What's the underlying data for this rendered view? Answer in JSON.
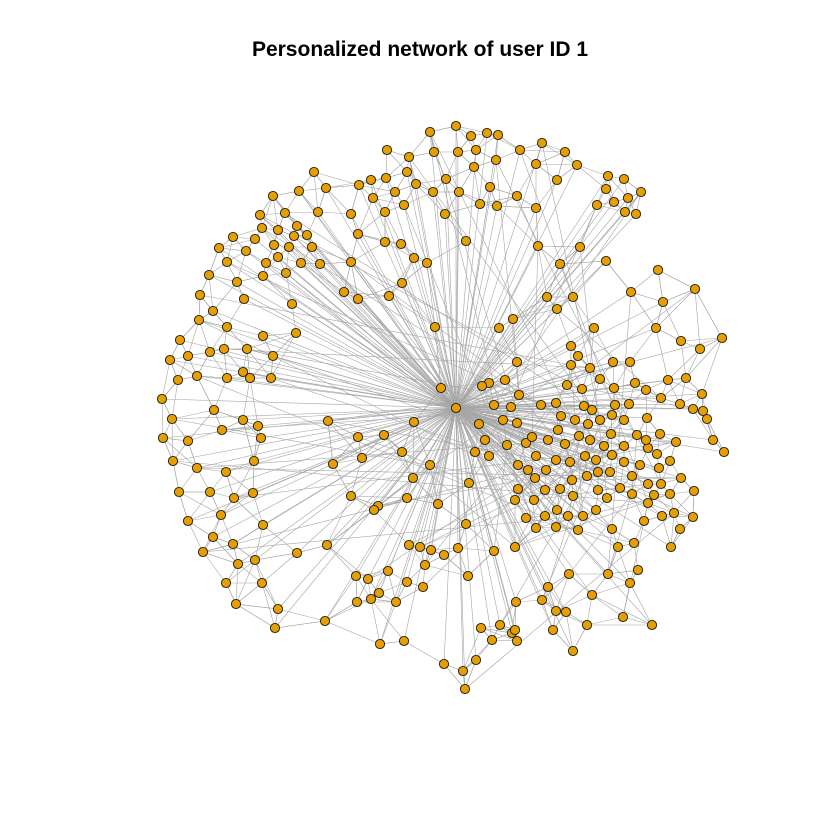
{
  "title": "Personalized network of user ID 1",
  "graph": {
    "node_fill": "#E69F00",
    "node_border": "#1a1a1a",
    "edge_color": "#a6a6a6",
    "ego_node": "user ID 1"
  }
}
